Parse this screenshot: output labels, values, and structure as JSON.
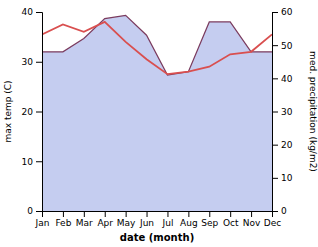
{
  "chart_data": {
    "type": "line",
    "categories": [
      "Jan",
      "Feb",
      "Mar",
      "Apr",
      "May",
      "Jun",
      "Jul",
      "Aug",
      "Sep",
      "Oct",
      "Nov",
      "Dec"
    ],
    "xlabel": "date (month)",
    "ylabel": "max temp (C)",
    "y2label": "med. precipitation (kg/m2)",
    "series": [
      {
        "type": "line",
        "color": "#d94f4f",
        "values": [
          35.5,
          37.5,
          36.0,
          38.0,
          34.0,
          30.5,
          27.5,
          28.0,
          29.0,
          31.5,
          32.0,
          35.5
        ]
      },
      {
        "type": "area",
        "axis": "y2",
        "color": "#7b3b5e",
        "fill_color": "#c5cdf0",
        "values": [
          48,
          48,
          52,
          58,
          59,
          53,
          41,
          42,
          57,
          57,
          48,
          48
        ]
      }
    ],
    "ylim": [
      0,
      40
    ],
    "yticks": [
      0,
      10,
      20,
      30,
      40
    ],
    "y2lim": [
      0,
      60
    ],
    "y2ticks": [
      0,
      10,
      20,
      30,
      40,
      50,
      60
    ]
  }
}
